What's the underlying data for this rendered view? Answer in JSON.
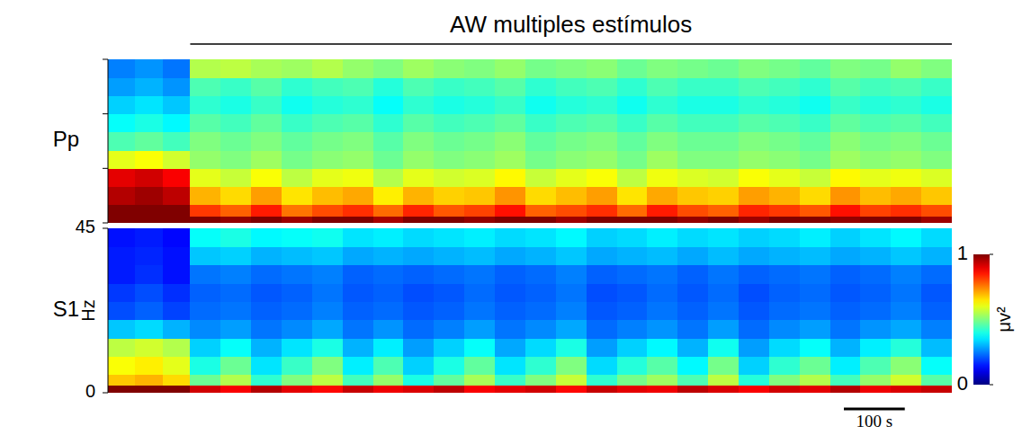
{
  "chart_data": [
    {
      "type": "heatmap",
      "panel_label": "Pp",
      "x_edges": [
        0,
        45,
        90,
        135,
        185,
        235,
        285,
        335,
        385,
        435,
        485,
        535,
        585,
        635,
        685,
        735,
        785,
        835,
        885,
        935,
        985,
        1035,
        1085,
        1135,
        1185,
        1235,
        1285,
        1335,
        1385
      ],
      "y_edges": [
        0,
        2,
        5,
        10,
        15,
        20,
        25,
        30,
        35,
        40,
        45
      ],
      "xlim": [
        0,
        1385
      ],
      "ylim": [
        0,
        45
      ],
      "yticks": [
        0,
        15,
        30,
        45
      ],
      "tick_labels": false,
      "z": [
        [
          1,
          1,
          1,
          1,
          0.98,
          1,
          0.97,
          1,
          1,
          0.96,
          1,
          1,
          0.98,
          1,
          1,
          0.97,
          1,
          1,
          1,
          0.98,
          1,
          0.97,
          1,
          1,
          0.98,
          1,
          1,
          0.97
        ],
        [
          1,
          1,
          1,
          0.82,
          0.78,
          0.85,
          0.76,
          0.8,
          0.83,
          0.77,
          0.84,
          0.79,
          0.81,
          0.86,
          0.78,
          0.8,
          0.83,
          0.77,
          0.85,
          0.8,
          0.78,
          0.84,
          0.82,
          0.79,
          0.86,
          0.81,
          0.83,
          0.8
        ],
        [
          0.95,
          0.97,
          0.94,
          0.7,
          0.66,
          0.72,
          0.65,
          0.69,
          0.71,
          0.64,
          0.7,
          0.67,
          0.68,
          0.73,
          0.66,
          0.69,
          0.72,
          0.65,
          0.71,
          0.68,
          0.67,
          0.72,
          0.7,
          0.66,
          0.73,
          0.69,
          0.71,
          0.68
        ],
        [
          0.9,
          0.92,
          0.88,
          0.6,
          0.57,
          0.62,
          0.56,
          0.6,
          0.61,
          0.55,
          0.6,
          0.58,
          0.59,
          0.63,
          0.57,
          0.6,
          0.62,
          0.56,
          0.61,
          0.59,
          0.58,
          0.62,
          0.6,
          0.57,
          0.63,
          0.6,
          0.61,
          0.59
        ],
        [
          0.6,
          0.62,
          0.58,
          0.52,
          0.5,
          0.53,
          0.49,
          0.51,
          0.52,
          0.48,
          0.52,
          0.5,
          0.51,
          0.53,
          0.49,
          0.51,
          0.52,
          0.49,
          0.53,
          0.5,
          0.5,
          0.52,
          0.51,
          0.49,
          0.53,
          0.51,
          0.52,
          0.5
        ],
        [
          0.45,
          0.47,
          0.44,
          0.5,
          0.48,
          0.5,
          0.47,
          0.49,
          0.5,
          0.46,
          0.5,
          0.48,
          0.49,
          0.51,
          0.47,
          0.49,
          0.5,
          0.47,
          0.5,
          0.48,
          0.48,
          0.5,
          0.49,
          0.47,
          0.51,
          0.49,
          0.5,
          0.48
        ],
        [
          0.38,
          0.4,
          0.37,
          0.46,
          0.44,
          0.47,
          0.43,
          0.45,
          0.46,
          0.42,
          0.46,
          0.44,
          0.45,
          0.47,
          0.43,
          0.45,
          0.46,
          0.43,
          0.46,
          0.44,
          0.44,
          0.46,
          0.45,
          0.43,
          0.47,
          0.45,
          0.46,
          0.44
        ],
        [
          0.33,
          0.35,
          0.32,
          0.42,
          0.4,
          0.43,
          0.39,
          0.41,
          0.42,
          0.38,
          0.42,
          0.4,
          0.41,
          0.43,
          0.39,
          0.41,
          0.42,
          0.39,
          0.42,
          0.4,
          0.4,
          0.42,
          0.41,
          0.39,
          0.43,
          0.41,
          0.42,
          0.4
        ],
        [
          0.28,
          0.3,
          0.27,
          0.45,
          0.43,
          0.46,
          0.42,
          0.44,
          0.45,
          0.41,
          0.45,
          0.43,
          0.44,
          0.46,
          0.42,
          0.44,
          0.45,
          0.42,
          0.45,
          0.43,
          0.43,
          0.45,
          0.44,
          0.42,
          0.46,
          0.44,
          0.45,
          0.43
        ],
        [
          0.25,
          0.27,
          0.24,
          0.55,
          0.56,
          0.54,
          0.53,
          0.55,
          0.52,
          0.5,
          0.53,
          0.51,
          0.5,
          0.52,
          0.49,
          0.5,
          0.51,
          0.48,
          0.5,
          0.49,
          0.48,
          0.5,
          0.49,
          0.47,
          0.5,
          0.49,
          0.52,
          0.5
        ]
      ]
    },
    {
      "type": "heatmap",
      "panel_label": "S1",
      "ylabel": "Hz",
      "x_edges": [
        0,
        45,
        90,
        135,
        185,
        235,
        285,
        335,
        385,
        435,
        485,
        535,
        585,
        635,
        685,
        735,
        785,
        835,
        885,
        935,
        985,
        1035,
        1085,
        1135,
        1185,
        1235,
        1285,
        1335,
        1385
      ],
      "y_edges": [
        0,
        2,
        5,
        10,
        15,
        20,
        25,
        30,
        35,
        40,
        45
      ],
      "xlim": [
        0,
        1385
      ],
      "ylim": [
        0,
        45
      ],
      "yticks": [
        0,
        45
      ],
      "tick_labels": "y",
      "z": [
        [
          1,
          1,
          1,
          0.92,
          0.88,
          0.95,
          0.9,
          0.87,
          0.93,
          0.89,
          0.91,
          0.94,
          0.88,
          0.9,
          0.92,
          0.87,
          0.93,
          0.9,
          0.89,
          0.94,
          0.91,
          0.88,
          0.92,
          0.9,
          0.95,
          0.89,
          0.91,
          0.93
        ],
        [
          0.68,
          0.7,
          0.66,
          0.48,
          0.55,
          0.42,
          0.5,
          0.56,
          0.44,
          0.52,
          0.4,
          0.47,
          0.54,
          0.43,
          0.5,
          0.57,
          0.42,
          0.49,
          0.53,
          0.45,
          0.56,
          0.41,
          0.5,
          0.55,
          0.44,
          0.52,
          0.58,
          0.46
        ],
        [
          0.62,
          0.64,
          0.6,
          0.4,
          0.48,
          0.35,
          0.43,
          0.5,
          0.36,
          0.45,
          0.33,
          0.4,
          0.47,
          0.35,
          0.42,
          0.5,
          0.34,
          0.41,
          0.46,
          0.37,
          0.49,
          0.33,
          0.42,
          0.48,
          0.36,
          0.45,
          0.51,
          0.38
        ],
        [
          0.56,
          0.58,
          0.55,
          0.33,
          0.38,
          0.3,
          0.35,
          0.4,
          0.3,
          0.36,
          0.28,
          0.33,
          0.38,
          0.29,
          0.34,
          0.4,
          0.28,
          0.33,
          0.37,
          0.3,
          0.39,
          0.28,
          0.34,
          0.38,
          0.3,
          0.36,
          0.41,
          0.31
        ],
        [
          0.32,
          0.34,
          0.3,
          0.26,
          0.28,
          0.24,
          0.26,
          0.29,
          0.24,
          0.27,
          0.23,
          0.25,
          0.28,
          0.24,
          0.26,
          0.29,
          0.23,
          0.25,
          0.27,
          0.24,
          0.28,
          0.23,
          0.26,
          0.28,
          0.24,
          0.27,
          0.29,
          0.25
        ],
        [
          0.2,
          0.22,
          0.19,
          0.23,
          0.24,
          0.22,
          0.23,
          0.25,
          0.22,
          0.23,
          0.21,
          0.22,
          0.24,
          0.22,
          0.23,
          0.25,
          0.21,
          0.22,
          0.24,
          0.22,
          0.24,
          0.21,
          0.23,
          0.24,
          0.22,
          0.23,
          0.25,
          0.22
        ],
        [
          0.18,
          0.2,
          0.17,
          0.22,
          0.23,
          0.21,
          0.22,
          0.24,
          0.21,
          0.22,
          0.2,
          0.21,
          0.23,
          0.21,
          0.22,
          0.24,
          0.2,
          0.21,
          0.23,
          0.21,
          0.23,
          0.2,
          0.22,
          0.23,
          0.21,
          0.22,
          0.24,
          0.21
        ],
        [
          0.15,
          0.17,
          0.14,
          0.24,
          0.25,
          0.23,
          0.24,
          0.25,
          0.22,
          0.23,
          0.22,
          0.23,
          0.24,
          0.22,
          0.23,
          0.25,
          0.22,
          0.23,
          0.24,
          0.22,
          0.24,
          0.22,
          0.23,
          0.24,
          0.22,
          0.23,
          0.25,
          0.23
        ],
        [
          0.15,
          0.16,
          0.14,
          0.32,
          0.33,
          0.3,
          0.31,
          0.32,
          0.29,
          0.3,
          0.29,
          0.3,
          0.31,
          0.29,
          0.3,
          0.32,
          0.29,
          0.3,
          0.31,
          0.29,
          0.31,
          0.29,
          0.3,
          0.31,
          0.29,
          0.3,
          0.32,
          0.3
        ],
        [
          0.14,
          0.15,
          0.13,
          0.38,
          0.4,
          0.37,
          0.38,
          0.39,
          0.35,
          0.36,
          0.34,
          0.35,
          0.36,
          0.34,
          0.35,
          0.37,
          0.33,
          0.34,
          0.36,
          0.34,
          0.35,
          0.33,
          0.34,
          0.36,
          0.33,
          0.35,
          0.37,
          0.34
        ]
      ]
    }
  ],
  "annotation": {
    "text": "AW multiples estímulos",
    "start": 135,
    "end": 1385
  },
  "scale_bar": {
    "value": 100,
    "label": "100 s"
  },
  "colorbar": {
    "range": [
      0,
      1
    ],
    "ticks": [
      0,
      1
    ],
    "label": "μv²"
  }
}
